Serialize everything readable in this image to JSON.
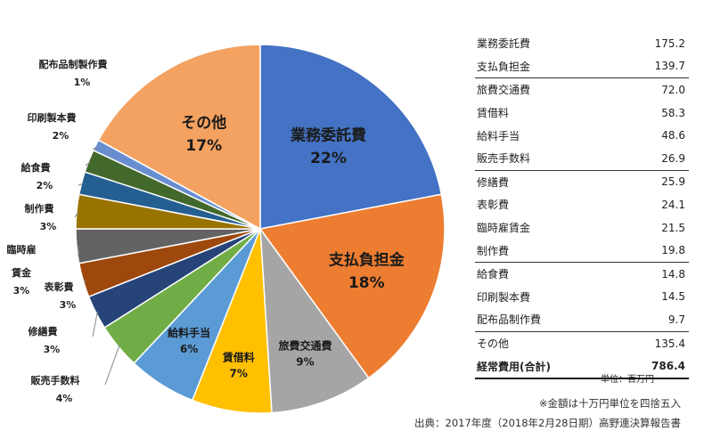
{
  "chart_data": {
    "type": "pie",
    "start_angle_deg": 0,
    "direction": "clockwise",
    "slices": [
      {
        "label": "業務委託費",
        "value": 22,
        "pct": "22%",
        "color": "#4472C4",
        "inside": true,
        "text_color": "#1a1a1a"
      },
      {
        "label": "支払負担金",
        "value": 18,
        "pct": "18%",
        "color": "#ED7D31",
        "inside": true,
        "text_color": "#1a1a1a"
      },
      {
        "label": "旅費交通費",
        "value": 9,
        "pct": "9%",
        "color": "#A5A5A5",
        "inside": true,
        "text_color": "#1a1a1a"
      },
      {
        "label": "賃借料",
        "value": 7,
        "pct": "7%",
        "color": "#FFC000",
        "inside": true,
        "text_color": "#1a1a1a"
      },
      {
        "label": "給料手当",
        "value": 6,
        "pct": "6%",
        "color": "#5B9BD5",
        "inside": true,
        "text_color": "#1a1a1a"
      },
      {
        "label": "販売手数料",
        "value": 4,
        "pct": "4%",
        "color": "#70AD47",
        "inside": false
      },
      {
        "label": "修繕費",
        "value": 3,
        "pct": "3%",
        "color": "#264478",
        "inside": false
      },
      {
        "label": "表彰費",
        "value": 3,
        "pct": "3%",
        "color": "#9E480E",
        "inside": false
      },
      {
        "label": "臨時雇賃金",
        "value": 3,
        "pct": "3%",
        "color": "#636363",
        "inside": false
      },
      {
        "label": "制作費",
        "value": 3,
        "pct": "3%",
        "color": "#997300",
        "inside": false
      },
      {
        "label": "給食費",
        "value": 2,
        "pct": "2%",
        "color": "#255E91",
        "inside": false
      },
      {
        "label": "印刷製本費",
        "value": 2,
        "pct": "2%",
        "color": "#43682B",
        "inside": false
      },
      {
        "label": "配布品制製作費",
        "value": 1,
        "pct": "1%",
        "color": "#698ED0",
        "inside": false
      },
      {
        "label": "その他",
        "value": 17,
        "pct": "17%",
        "color": "#F4A261",
        "inside": true,
        "text_color": "#1a1a1a"
      }
    ]
  },
  "table": {
    "rows": [
      {
        "name": "業務委託費",
        "value": "175.2"
      },
      {
        "name": "支払負担金",
        "value": "139.7"
      },
      {
        "name": "旅費交通費",
        "value": "72.0"
      },
      {
        "name": "賃借料",
        "value": "58.3"
      },
      {
        "name": "給料手当",
        "value": "48.6"
      },
      {
        "name": "販売手数料",
        "value": "26.9"
      },
      {
        "name": "修繕費",
        "value": "25.9"
      },
      {
        "name": "表彰費",
        "value": "24.1"
      },
      {
        "name": "臨時雇賃金",
        "value": "21.5"
      },
      {
        "name": "制作費",
        "value": "19.8"
      },
      {
        "name": "給食費",
        "value": "14.8"
      },
      {
        "name": "印刷製本費",
        "value": "14.5"
      },
      {
        "name": "配布品制作費",
        "value": "9.7"
      },
      {
        "name": "その他",
        "value": "135.4"
      }
    ],
    "total_name": "経常費用(合計)",
    "total_value": "786.4",
    "unit": "単位：百万円"
  },
  "notes": {
    "rounding": "※金額は十万円単位を四捨五入",
    "source": "出典：2017年度（2018年2月28日期）高野連決算報告書"
  }
}
